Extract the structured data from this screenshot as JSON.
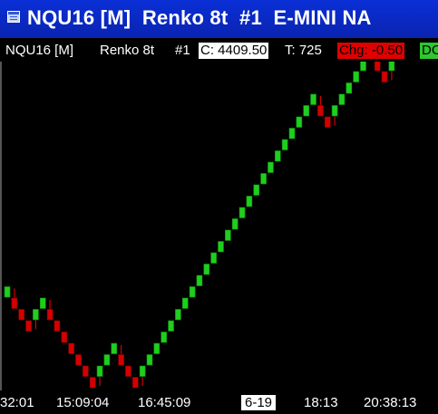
{
  "window": {
    "title": "NQU16 [M]  Renko 8t  #1  E-MINI NA",
    "icon": "window-app-icon"
  },
  "info_bar": {
    "symbol": "NQU16 [M]",
    "period": "Renko 8t",
    "index": "#1",
    "close": "C: 4409.50",
    "ticks": "T: 725",
    "change": "Chg: -0.50",
    "dc": "DC"
  },
  "colors": {
    "up": "#1fcf1f",
    "down": "#d40000",
    "wick": "#d40000",
    "title_bar": "#0a2fd6",
    "change_bg": "#e00000",
    "dc_bg": "#2ec82e"
  },
  "chart_data": {
    "type": "candlestick",
    "chart_style": "renko",
    "brick_size_ticks": 8,
    "tick_size": 0.25,
    "brick_size_points": 2,
    "direction_sequence": [
      "up",
      "down",
      "down",
      "down",
      "up",
      "up",
      "down",
      "down",
      "down",
      "down",
      "down",
      "down",
      "down",
      "up",
      "up",
      "up",
      "down",
      "down",
      "down",
      "up",
      "up",
      "up",
      "up",
      "up",
      "up",
      "up",
      "up",
      "up",
      "up",
      "up",
      "up",
      "up",
      "up",
      "up",
      "up",
      "up",
      "up",
      "up",
      "up",
      "up",
      "up",
      "up",
      "up",
      "up",
      "down",
      "down",
      "up",
      "up",
      "up",
      "up",
      "up",
      "up",
      "down",
      "down",
      "up"
    ],
    "last_close": 4409.5,
    "x_labels": [
      "32:01",
      "15:09:04",
      "16:45:09",
      "6-19",
      "18:13",
      "20:38:13"
    ],
    "highlighted_x_label": "6-19"
  }
}
